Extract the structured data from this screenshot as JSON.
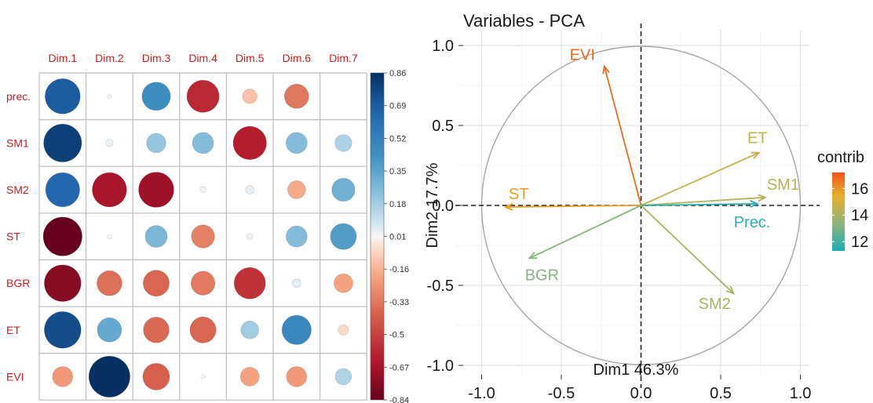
{
  "chart_data": [
    {
      "type": "heatmap",
      "subtype": "correlation-circles",
      "columns": [
        "Dim.1",
        "Dim.2",
        "Dim.3",
        "Dim.4",
        "Dim.5",
        "Dim.6",
        "Dim.7"
      ],
      "rows": [
        "prec.",
        "SM1",
        "SM2",
        "ST",
        "BGR",
        "ET",
        "EVI"
      ],
      "values": [
        [
          0.69,
          0.01,
          0.45,
          -0.58,
          -0.12,
          -0.33,
          0.0
        ],
        [
          0.8,
          0.03,
          0.21,
          0.25,
          -0.62,
          0.25,
          0.16
        ],
        [
          0.65,
          -0.66,
          -0.69,
          0.02,
          0.04,
          -0.18,
          0.3
        ],
        [
          -0.84,
          0.01,
          0.27,
          -0.3,
          0.02,
          0.25,
          0.38
        ],
        [
          -0.75,
          -0.35,
          -0.38,
          -0.32,
          -0.55,
          0.04,
          -0.2
        ],
        [
          0.75,
          0.33,
          -0.37,
          -0.38,
          0.18,
          0.48,
          -0.06
        ],
        [
          -0.23,
          0.94,
          -0.4,
          0.01,
          -0.2,
          -0.23,
          0.15
        ]
      ],
      "colorbar_ticks": [
        "0.86",
        "0.69",
        "0.52",
        "0.35",
        "0.18",
        "0.01",
        "-0.16",
        "-0.33",
        "-0.5",
        "-0.67",
        "-0.84"
      ],
      "range": [
        -0.84,
        0.86
      ],
      "colors": {
        "negative": "#67001f",
        "mid": "#f7f7f7",
        "positive": "#053061",
        "label": "#cc1f1f",
        "grid": "#bdbdbd"
      }
    },
    {
      "type": "scatter",
      "subtype": "pca-variable-correlation-circle",
      "title": "Variables - PCA",
      "xlabel": "Dim1 46.3%",
      "ylabel": "Dim2 17.7%",
      "xlim": [
        -1.0,
        1.0
      ],
      "ylim": [
        -1.0,
        1.0
      ],
      "xticks": [
        "-1.0",
        "-0.5",
        "0.0",
        "0.5",
        "1.0"
      ],
      "yticks": [
        "1.0",
        "0.5",
        "0.0",
        "-0.5",
        "-1.0"
      ],
      "grid": true,
      "legend": {
        "title": "contrib",
        "position": "right",
        "ticks": [
          "16",
          "14",
          "12"
        ],
        "range": [
          11.3,
          17.2
        ]
      },
      "points": [
        {
          "label": "EVI",
          "x": -0.23,
          "y": 0.87,
          "contrib": 16.8
        },
        {
          "label": "ET",
          "x": 0.74,
          "y": 0.33,
          "contrib": 14.6
        },
        {
          "label": "SM1",
          "x": 0.78,
          "y": 0.05,
          "contrib": 14.2
        },
        {
          "label": "Prec.",
          "x": 0.73,
          "y": 0.01,
          "contrib": 11.6
        },
        {
          "label": "ST",
          "x": -0.85,
          "y": -0.01,
          "contrib": 15.8
        },
        {
          "label": "BGR",
          "x": -0.7,
          "y": -0.33,
          "contrib": 13.2
        },
        {
          "label": "SM2",
          "x": 0.58,
          "y": -0.55,
          "contrib": 14.0
        }
      ]
    }
  ]
}
